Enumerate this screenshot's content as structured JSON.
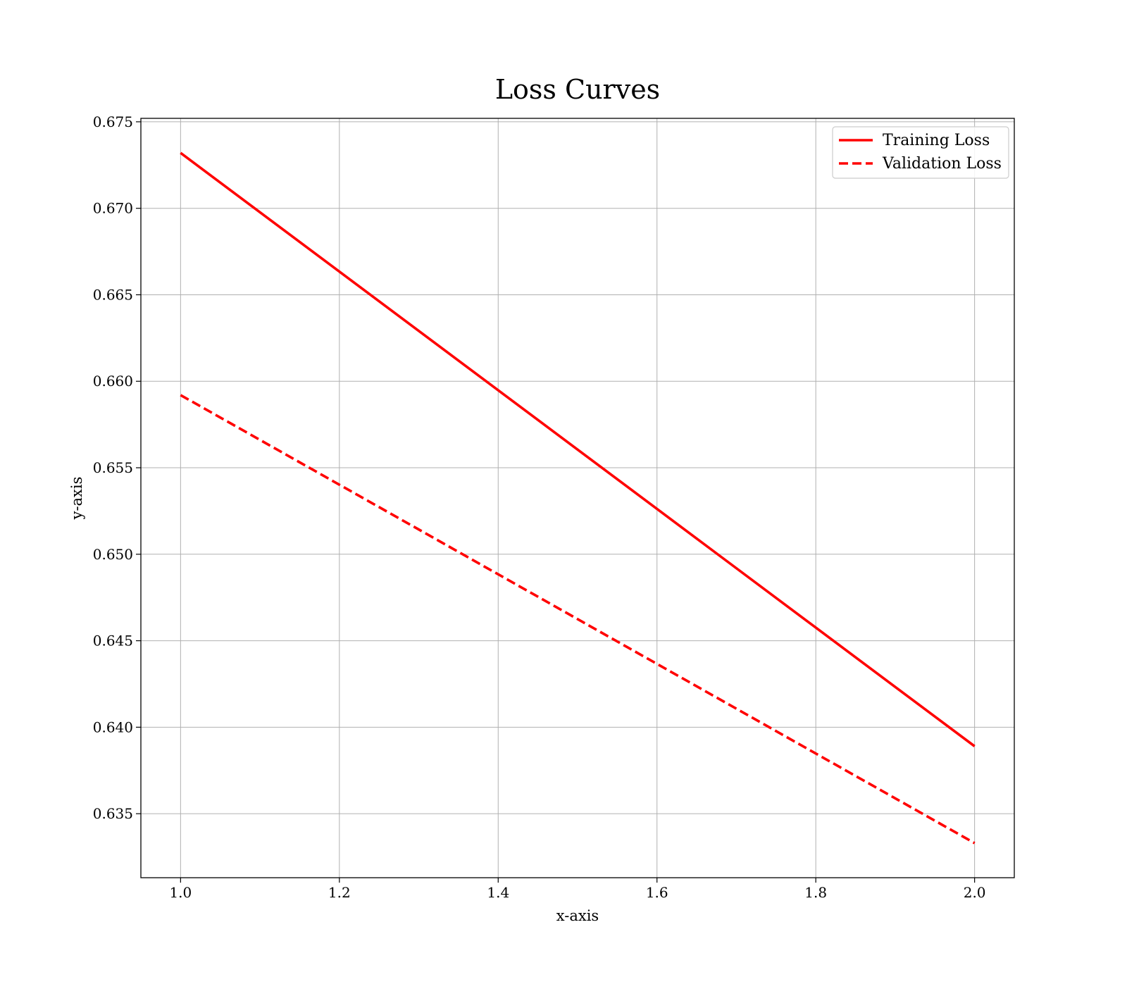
{
  "chart_data": {
    "type": "line",
    "title": "Loss Curves",
    "xlabel": "x-axis",
    "ylabel": "y-axis",
    "xlim": [
      0.95,
      2.05
    ],
    "ylim": [
      0.6313,
      0.6752
    ],
    "x_ticks": [
      1.0,
      1.2,
      1.4,
      1.6,
      1.8,
      2.0
    ],
    "x_tick_labels": [
      "1.0",
      "1.2",
      "1.4",
      "1.6",
      "1.8",
      "2.0"
    ],
    "y_ticks": [
      0.635,
      0.64,
      0.645,
      0.65,
      0.655,
      0.66,
      0.665,
      0.67,
      0.675
    ],
    "y_tick_labels": [
      "0.635",
      "0.640",
      "0.645",
      "0.650",
      "0.655",
      "0.660",
      "0.665",
      "0.670",
      "0.675"
    ],
    "grid": true,
    "legend_position": "top-right",
    "series": [
      {
        "name": "Training Loss",
        "x": [
          1.0,
          2.0
        ],
        "y": [
          0.6732,
          0.6389
        ],
        "color": "#ff0000",
        "style": "solid"
      },
      {
        "name": "Validation Loss",
        "x": [
          1.0,
          2.0
        ],
        "y": [
          0.6592,
          0.6333
        ],
        "color": "#ff0000",
        "style": "dashed"
      }
    ]
  }
}
